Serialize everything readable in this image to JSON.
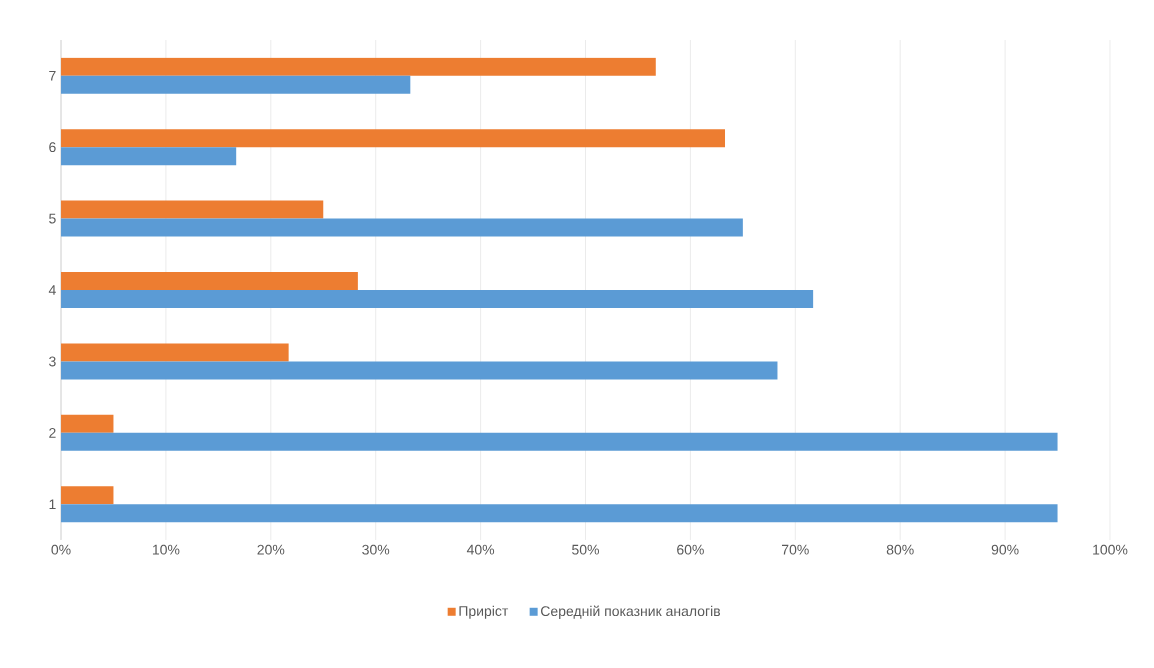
{
  "chart_data": {
    "type": "bar",
    "orientation": "horizontal",
    "categories": [
      "7",
      "6",
      "5",
      "4",
      "3",
      "2",
      "1"
    ],
    "series": [
      {
        "name": "Приріст",
        "color": "#ed7d31",
        "values": [
          56.7,
          63.3,
          25,
          28.3,
          21.7,
          5,
          5
        ]
      },
      {
        "name": "Середній показник аналогів",
        "color": "#5b9bd5",
        "values": [
          33.3,
          16.7,
          65,
          71.7,
          68.3,
          95,
          95
        ]
      }
    ],
    "xlim": [
      0,
      100
    ],
    "xticks": [
      {
        "value": 0,
        "label": "0%"
      },
      {
        "value": 10,
        "label": "10%"
      },
      {
        "value": 20,
        "label": "20%"
      },
      {
        "value": 30,
        "label": "30%"
      },
      {
        "value": 40,
        "label": "40%"
      },
      {
        "value": 50,
        "label": "50%"
      },
      {
        "value": 60,
        "label": "60%"
      },
      {
        "value": 70,
        "label": "70%"
      },
      {
        "value": 80,
        "label": "80%"
      },
      {
        "value": 90,
        "label": "90%"
      },
      {
        "value": 100,
        "label": "100%"
      }
    ],
    "grid": "x",
    "legend": "bottom"
  }
}
